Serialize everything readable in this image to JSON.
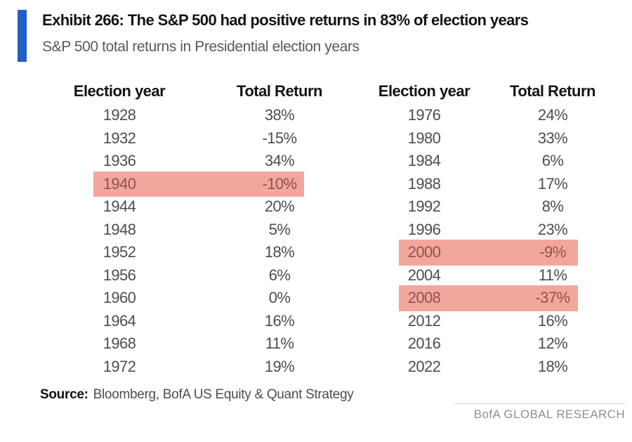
{
  "header": {
    "title": "Exhibit 266: The S&P 500 had positive returns in 83% of election years",
    "subtitle": "S&P 500 total returns in Presidential election years"
  },
  "chart_data": {
    "type": "table",
    "title": "S&P 500 total returns in Presidential election years",
    "columns": [
      "Election year",
      "Total Return"
    ],
    "left": {
      "rows": [
        {
          "year": "1928",
          "return": "38%",
          "highlight": false
        },
        {
          "year": "1932",
          "return": "-15%",
          "highlight": false
        },
        {
          "year": "1936",
          "return": "34%",
          "highlight": false
        },
        {
          "year": "1940",
          "return": "-10%",
          "highlight": true
        },
        {
          "year": "1944",
          "return": "20%",
          "highlight": false
        },
        {
          "year": "1948",
          "return": "5%",
          "highlight": false
        },
        {
          "year": "1952",
          "return": "18%",
          "highlight": false
        },
        {
          "year": "1956",
          "return": "6%",
          "highlight": false
        },
        {
          "year": "1960",
          "return": "0%",
          "highlight": false
        },
        {
          "year": "1964",
          "return": "16%",
          "highlight": false
        },
        {
          "year": "1968",
          "return": "11%",
          "highlight": false
        },
        {
          "year": "1972",
          "return": "19%",
          "highlight": false
        }
      ]
    },
    "right": {
      "rows": [
        {
          "year": "1976",
          "return": "24%",
          "highlight": false
        },
        {
          "year": "1980",
          "return": "33%",
          "highlight": false
        },
        {
          "year": "1984",
          "return": "6%",
          "highlight": false
        },
        {
          "year": "1988",
          "return": "17%",
          "highlight": false
        },
        {
          "year": "1992",
          "return": "8%",
          "highlight": false
        },
        {
          "year": "1996",
          "return": "23%",
          "highlight": false
        },
        {
          "year": "2000",
          "return": "-9%",
          "highlight": true
        },
        {
          "year": "2004",
          "return": "11%",
          "highlight": false
        },
        {
          "year": "2008",
          "return": "-37%",
          "highlight": true
        },
        {
          "year": "2012",
          "return": "16%",
          "highlight": false
        },
        {
          "year": "2016",
          "return": "12%",
          "highlight": false
        },
        {
          "year": "2022",
          "return": "18%",
          "highlight": false
        }
      ]
    }
  },
  "footer": {
    "source_label": "Source:",
    "source_text": "Bloomberg, BofA US Equity & Quant Strategy",
    "brand": "BofA GLOBAL RESEARCH"
  },
  "colors": {
    "accent_blue": "#2160c4",
    "highlight_pink": "#f3a69c",
    "highlight_text": "#8e544e",
    "body_text": "#4d4d4d",
    "brand_gray": "#8a909a"
  }
}
